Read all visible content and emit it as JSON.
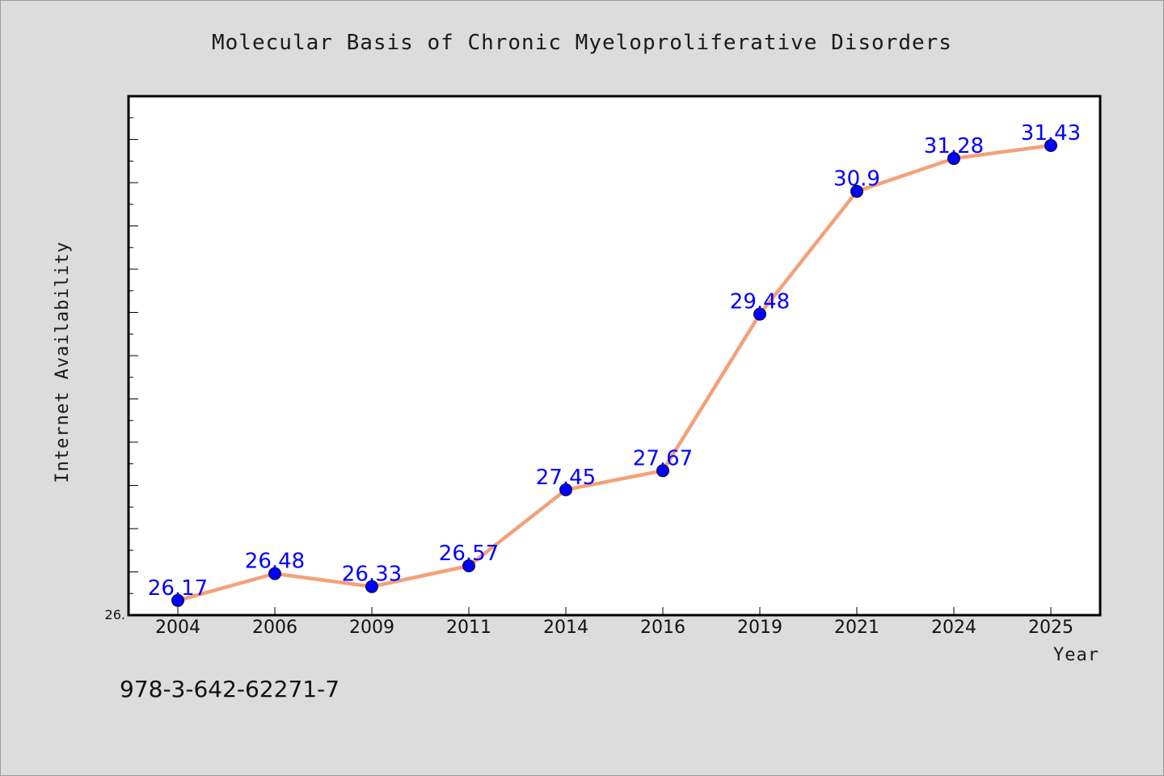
{
  "chart_data": {
    "type": "line",
    "title": "Molecular Basis of Chronic Myeloproliferative Disorders",
    "xlabel": "Year",
    "ylabel": "Internet Availability",
    "categories": [
      "2004",
      "2006",
      "2009",
      "2011",
      "2014",
      "2016",
      "2019",
      "2021",
      "2024",
      "2025"
    ],
    "series": [
      {
        "values": [
          26.17,
          26.48,
          26.33,
          26.57,
          27.45,
          27.67,
          29.48,
          30.9,
          31.28,
          31.43
        ],
        "data_labels": [
          "26.17",
          "26.48",
          "26.33",
          "26.57",
          "27.45",
          "27.67",
          "29.48",
          "30.9",
          "31.28",
          "31.43"
        ]
      }
    ],
    "ylim": [
      26.0,
      32.0
    ],
    "y_min_label": "26.",
    "grid": false,
    "line_color": "#f4a07a",
    "marker_color": "#0000ff",
    "label_color": "#0000ff"
  },
  "footer": {
    "isbn": "978-3-642-62271-7"
  }
}
